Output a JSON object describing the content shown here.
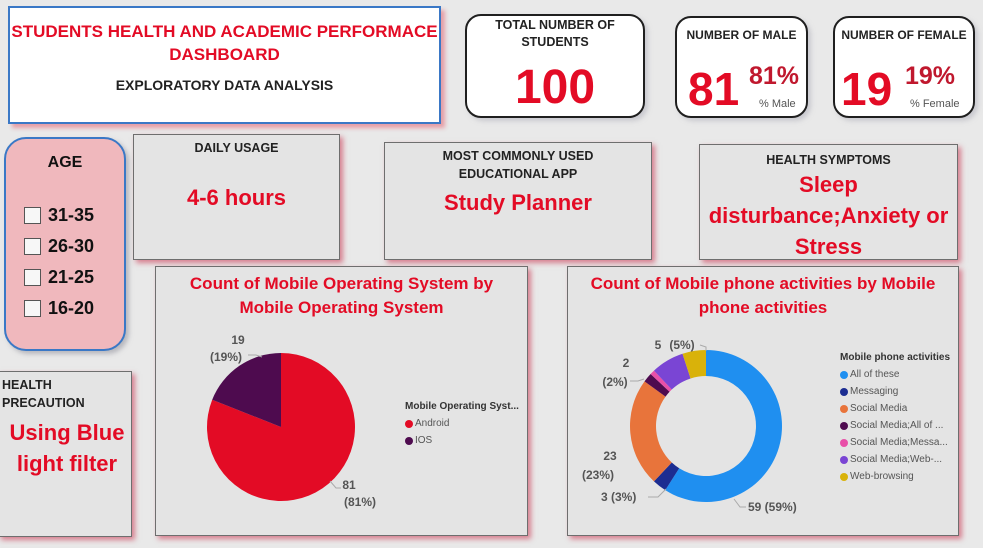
{
  "header": {
    "title": "STUDENTS HEALTH AND ACADEMIC PERFORMACE DASHBOARD",
    "subtitle": "EXPLORATORY DATA ANALYSIS"
  },
  "kpis": {
    "total": {
      "label": "TOTAL NUMBER OF STUDENTS",
      "value": "100"
    },
    "male": {
      "label": "NUMBER OF MALE",
      "value": "81",
      "pct": "81%",
      "pct_label": "% Male"
    },
    "female": {
      "label": "NUMBER OF FEMALE",
      "value": "19",
      "pct": "19%",
      "pct_label": "% Female"
    }
  },
  "age_filter": {
    "title": "AGE",
    "options": [
      "31-35",
      "26-30",
      "21-25",
      "16-20"
    ]
  },
  "daily_usage": {
    "title": "DAILY USAGE",
    "value": "4-6 hours"
  },
  "common_app": {
    "title": "MOST COMMONLY USED EDUCATIONAL APP",
    "value": "Study Planner"
  },
  "health_symptoms": {
    "title": "HEALTH SYMPTOMS",
    "value": "Sleep disturbance;Anxiety or Stress"
  },
  "health_precaution": {
    "title": "HEALTH PRECAUTION",
    "value": "Using Blue light filter"
  },
  "colors": {
    "accent_red": "#e30b25",
    "android": "#e30b25",
    "ios": "#4e0b4f",
    "all_of_these": "#1f8ff0",
    "messaging": "#1c2d91",
    "social_media": "#e8743b",
    "social_media_all": "#4e0b4f",
    "social_media_messa": "#e84fa8",
    "social_media_web": "#7a45d4",
    "web_browsing": "#d9b20a"
  },
  "chart_data": [
    {
      "type": "pie",
      "title": "Count of Mobile Operating System by Mobile Operating System",
      "legend_title": "Mobile Operating Syst...",
      "legend_position": "right",
      "categories": [
        "Android",
        "IOS"
      ],
      "values": [
        81,
        19
      ],
      "data_labels": [
        {
          "count": "81",
          "pct": "(81%)"
        },
        {
          "count": "19",
          "pct": "(19%)"
        }
      ]
    },
    {
      "type": "pie",
      "subtype": "donut",
      "title": "Count of Mobile phone activities by Mobile phone activities",
      "legend_title": "Mobile phone activities",
      "legend_position": "right",
      "categories": [
        "All of these",
        "Messaging",
        "Social Media",
        "Social Media;All of ...",
        "Social Media;Messa...",
        "Social Media;Web-...",
        "Web-browsing"
      ],
      "values": [
        59,
        3,
        23,
        2,
        1,
        7,
        5
      ],
      "data_labels": [
        {
          "count": "59",
          "pct": "(59%)",
          "text": "59 (59%)"
        },
        {
          "count": "3",
          "pct": "(3%)",
          "text": "3 (3%)"
        },
        {
          "count": "23",
          "pct": "(23%)"
        },
        {
          "count": "2",
          "pct": "(2%)"
        },
        {
          "count": "5",
          "pct": "(5%)",
          "text": "5 (5%)"
        }
      ]
    }
  ]
}
